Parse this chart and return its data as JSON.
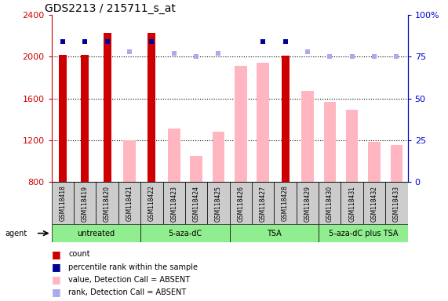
{
  "title": "GDS2213 / 215711_s_at",
  "samples": [
    "GSM118418",
    "GSM118419",
    "GSM118420",
    "GSM118421",
    "GSM118422",
    "GSM118423",
    "GSM118424",
    "GSM118425",
    "GSM118426",
    "GSM118427",
    "GSM118428",
    "GSM118429",
    "GSM118430",
    "GSM118431",
    "GSM118432",
    "GSM118433"
  ],
  "count_values": [
    2020,
    2020,
    2230,
    null,
    2230,
    null,
    null,
    null,
    null,
    null,
    2010,
    null,
    null,
    null,
    null,
    null
  ],
  "count_present": [
    true,
    true,
    true,
    false,
    true,
    false,
    false,
    false,
    false,
    false,
    true,
    false,
    false,
    false,
    false,
    false
  ],
  "value_absent": [
    null,
    null,
    null,
    1200,
    null,
    1310,
    1050,
    1280,
    1910,
    1940,
    null,
    1670,
    1570,
    1490,
    1185,
    1155
  ],
  "rank_present_values": [
    84,
    84,
    84,
    null,
    84,
    null,
    null,
    null,
    null,
    84,
    84,
    null,
    null,
    null,
    null,
    null
  ],
  "rank_present": [
    true,
    true,
    true,
    false,
    true,
    false,
    false,
    false,
    false,
    true,
    true,
    false,
    false,
    false,
    false,
    false
  ],
  "rank_absent_values": [
    null,
    null,
    null,
    78,
    null,
    77,
    75,
    77,
    null,
    null,
    null,
    78,
    75,
    75,
    75,
    75
  ],
  "rank_absent": [
    false,
    false,
    false,
    true,
    false,
    true,
    true,
    true,
    false,
    false,
    false,
    true,
    true,
    true,
    true,
    true
  ],
  "ylim_left": [
    800,
    2400
  ],
  "ylim_right": [
    0,
    100
  ],
  "yticks_left": [
    800,
    1200,
    1600,
    2000,
    2400
  ],
  "yticks_right": [
    0,
    25,
    50,
    75,
    100
  ],
  "agent_groups": [
    {
      "label": "untreated",
      "start": 0,
      "end": 4
    },
    {
      "label": "5-aza-dC",
      "start": 4,
      "end": 8
    },
    {
      "label": "TSA",
      "start": 8,
      "end": 12
    },
    {
      "label": "5-aza-dC plus TSA",
      "start": 12,
      "end": 16
    }
  ],
  "count_color": "#CC0000",
  "value_absent_color": "#FFB6C1",
  "rank_present_color": "#000099",
  "rank_absent_color": "#AAAAEE",
  "bg_color": "#FFFFFF",
  "axis_label_color_left": "#CC0000",
  "axis_label_color_right": "#0000CC",
  "grid_color": "#000000",
  "agent_color": "#90EE90",
  "label_bg_color": "#CCCCCC"
}
